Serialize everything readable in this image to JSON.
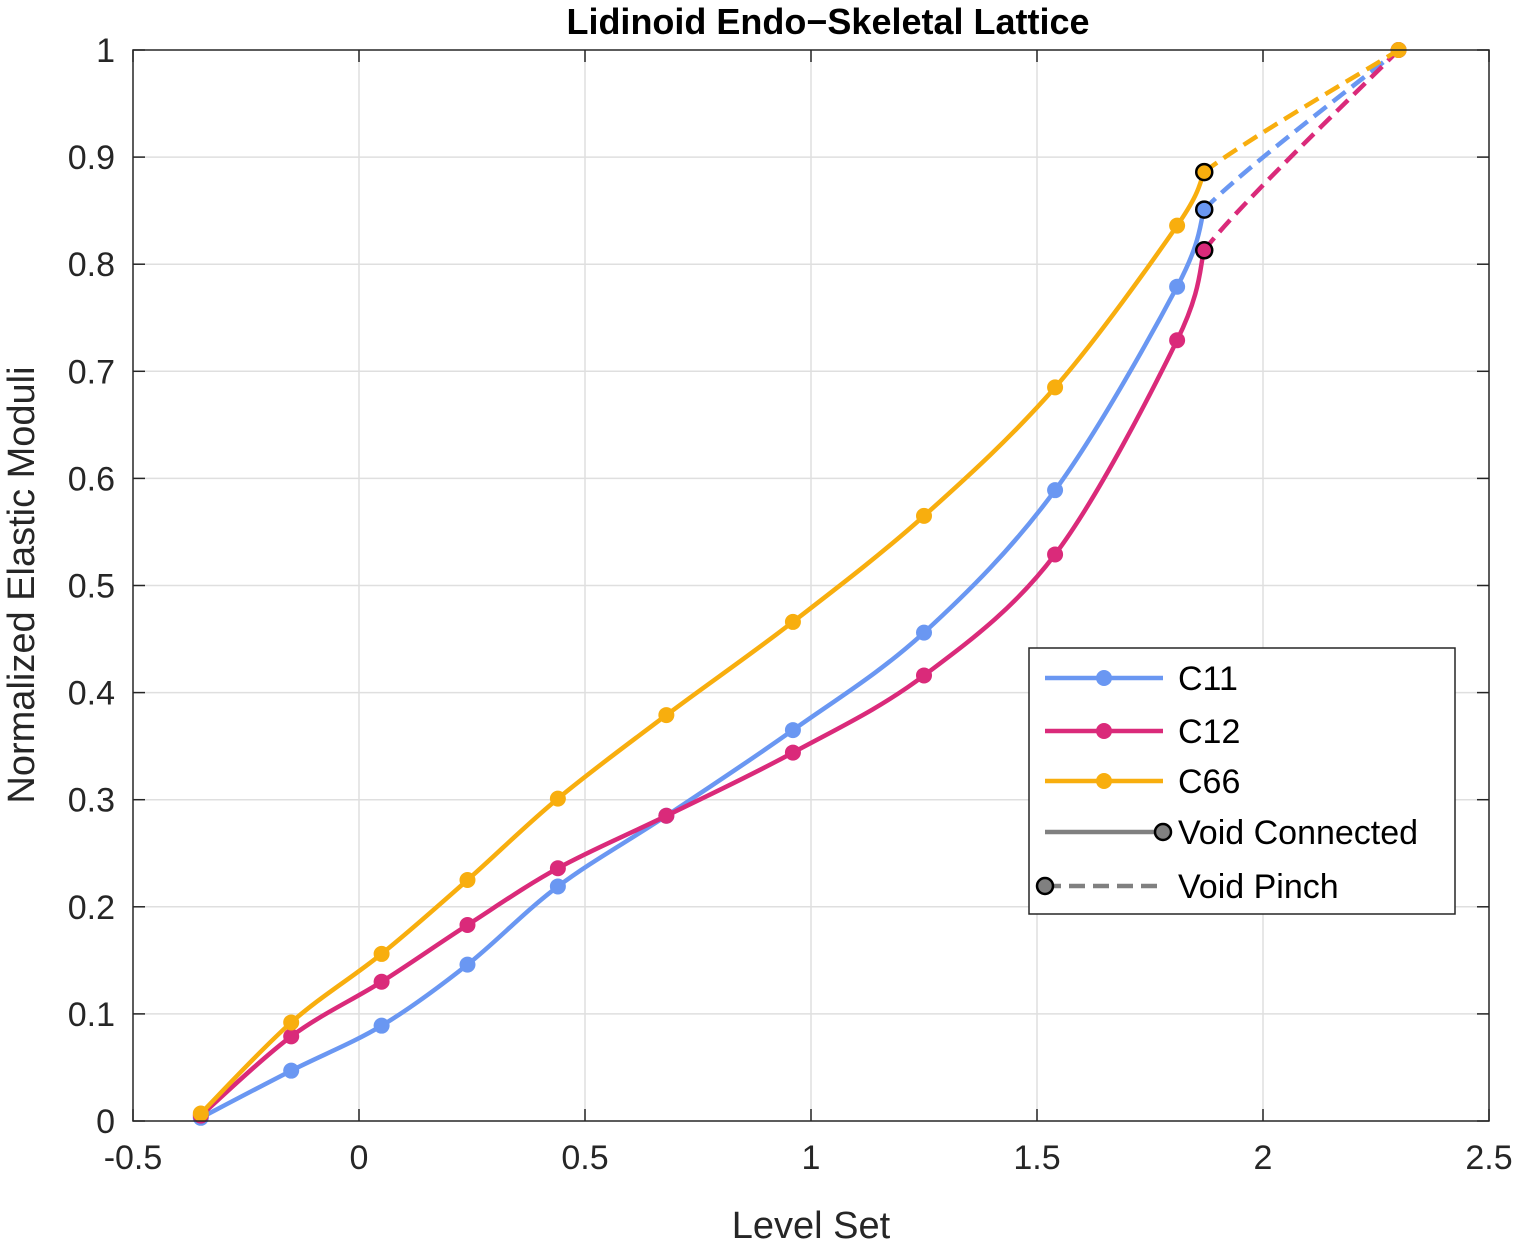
{
  "chart_data": {
    "type": "line",
    "title": "Lidinoid Endo−Skeletal Lattice",
    "xlabel": "Level Set",
    "ylabel": "Normalized Elastic Moduli",
    "xlim": [
      -0.5,
      2.5
    ],
    "ylim": [
      0,
      1
    ],
    "xticks": [
      -0.5,
      0,
      0.5,
      1,
      1.5,
      2,
      2.5
    ],
    "xtick_labels": [
      "-0.5",
      "0",
      "0.5",
      "1",
      "1.5",
      "2",
      "2.5"
    ],
    "yticks": [
      0,
      0.1,
      0.2,
      0.3,
      0.4,
      0.5,
      0.6,
      0.7,
      0.8,
      0.9,
      1
    ],
    "ytick_labels": [
      "0",
      "0.1",
      "0.2",
      "0.3",
      "0.4",
      "0.5",
      "0.6",
      "0.7",
      "0.8",
      "0.9",
      "1"
    ],
    "grid": true,
    "legend_position": "right",
    "series": [
      {
        "name": "C11",
        "color": "#6A97F2",
        "x": [
          -0.35,
          -0.15,
          0.05,
          0.24,
          0.44,
          0.68,
          0.96,
          1.25,
          1.54,
          1.81
        ],
        "y": [
          0.003,
          0.047,
          0.089,
          0.146,
          0.219,
          0.285,
          0.365,
          0.456,
          0.589,
          0.779
        ],
        "pinch": {
          "x": 1.87,
          "y": 0.851
        },
        "end": {
          "x": 2.3,
          "y": 1.0
        }
      },
      {
        "name": "C12",
        "color": "#DA2A7A",
        "x": [
          -0.35,
          -0.15,
          0.05,
          0.24,
          0.44,
          0.68,
          0.96,
          1.25,
          1.54,
          1.81
        ],
        "y": [
          0.005,
          0.079,
          0.13,
          0.183,
          0.236,
          0.285,
          0.344,
          0.416,
          0.529,
          0.729
        ],
        "pinch": {
          "x": 1.87,
          "y": 0.813
        },
        "end": {
          "x": 2.3,
          "y": 1.0
        }
      },
      {
        "name": "C66",
        "color": "#F8AE0E",
        "x": [
          -0.35,
          -0.15,
          0.05,
          0.24,
          0.44,
          0.68,
          0.96,
          1.25,
          1.54,
          1.81
        ],
        "y": [
          0.007,
          0.092,
          0.156,
          0.225,
          0.301,
          0.379,
          0.466,
          0.565,
          0.685,
          0.836
        ],
        "pinch": {
          "x": 1.87,
          "y": 0.886
        },
        "end": {
          "x": 2.3,
          "y": 1.0
        }
      }
    ],
    "legend": {
      "entries": [
        "C11",
        "C12",
        "C66",
        "Void Connected",
        "Void Pinch"
      ],
      "marker_color": "#808080"
    }
  }
}
